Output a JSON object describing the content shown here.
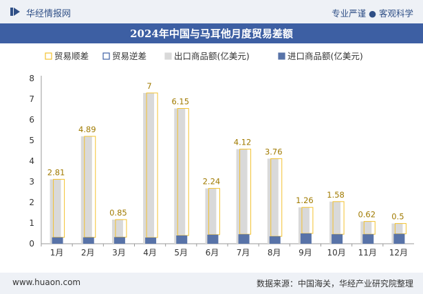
{
  "header": {
    "brand": "华经情报网",
    "tagline": "专业严谨 ● 客观科学"
  },
  "footer": {
    "website": "www.huaon.com",
    "source": "数据来源：中国海关，华经产业研究院整理"
  },
  "colors": {
    "surplus": "#f2c12e",
    "deficit": "#3d5fa3",
    "export": "#d9d9d9",
    "import": "#5873a8",
    "title_bg": "#3d5fa3",
    "header_bg": "#eef1f6"
  },
  "chart_data": {
    "type": "bar",
    "title": "2024年中国与马耳他月度贸易差额",
    "categories": [
      "1月",
      "2月",
      "3月",
      "4月",
      "5月",
      "6月",
      "7月",
      "8月",
      "9月",
      "10月",
      "11月",
      "12月"
    ],
    "series": [
      {
        "name": "贸易顺差",
        "values": [
          2.81,
          4.89,
          0.85,
          7,
          6.15,
          2.24,
          4.12,
          3.76,
          1.26,
          1.58,
          0.62,
          0.5
        ]
      },
      {
        "name": "贸易逆差",
        "values": [
          null,
          null,
          null,
          null,
          null,
          null,
          null,
          null,
          null,
          null,
          null,
          null
        ]
      },
      {
        "name": "出口商品额(亿美元)",
        "values": [
          3.12,
          5.2,
          1.17,
          7.3,
          6.55,
          2.68,
          4.58,
          4.12,
          1.76,
          2.04,
          1.08,
          0.98
        ]
      },
      {
        "name": "进口商品额(亿美元)",
        "values": [
          0.31,
          0.31,
          0.32,
          0.3,
          0.4,
          0.44,
          0.46,
          0.36,
          0.5,
          0.46,
          0.46,
          0.48
        ]
      }
    ],
    "ylim": [
      0,
      8
    ],
    "yticks": [
      0,
      1,
      2,
      3,
      4,
      5,
      6,
      7,
      8
    ],
    "grid": false,
    "legend_position": "top"
  }
}
